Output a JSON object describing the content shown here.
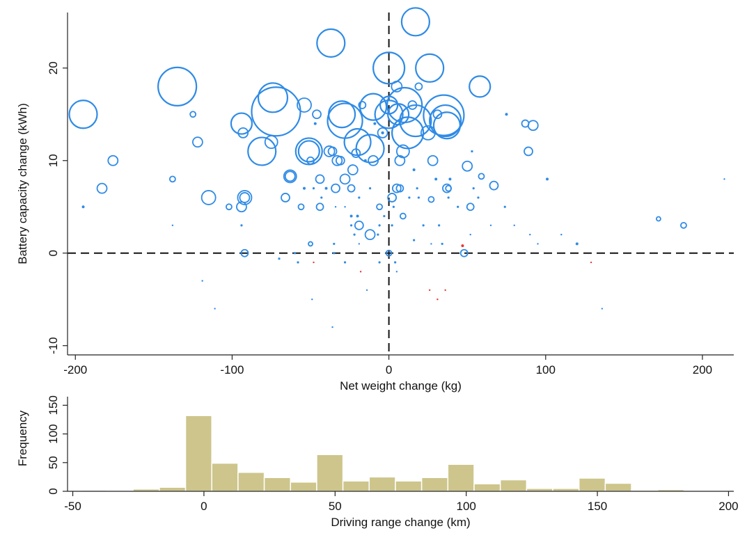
{
  "chart_data": [
    {
      "type": "scatter",
      "xlabel": "Net weight change (kg)",
      "ylabel": "Battery capacity change (kWh)",
      "xlim": [
        -205,
        220
      ],
      "ylim": [
        -11,
        26
      ],
      "xticks": [
        -200,
        -100,
        0,
        100,
        200
      ],
      "yticks": [
        -10,
        0,
        10,
        20
      ],
      "xtick_labels": [
        "-200",
        "-100",
        "0",
        "100",
        "200"
      ],
      "ytick_labels": [
        "-10",
        "0",
        "10",
        "20"
      ],
      "reference_lines": {
        "x": 0,
        "y": 0,
        "style": "dashed"
      },
      "size_encoding": "driving range change",
      "colors": {
        "positive": "#2f8be6",
        "negative": "#e8362e"
      },
      "points": [
        {
          "x": 17,
          "y": 25,
          "s": 40,
          "c": "b"
        },
        {
          "x": -37,
          "y": 22.7,
          "s": 40,
          "c": "b"
        },
        {
          "x": 0,
          "y": 20,
          "s": 45,
          "c": "b"
        },
        {
          "x": 26,
          "y": 20,
          "s": 40,
          "c": "b"
        },
        {
          "x": -135,
          "y": 18,
          "s": 55,
          "c": "b"
        },
        {
          "x": -74,
          "y": 16.8,
          "s": 42,
          "c": "b"
        },
        {
          "x": 5,
          "y": 18,
          "s": 15,
          "c": "b"
        },
        {
          "x": 19,
          "y": 18,
          "s": 10,
          "c": "b"
        },
        {
          "x": 58,
          "y": 18,
          "s": 30,
          "c": "b"
        },
        {
          "x": -195,
          "y": 15,
          "s": 40,
          "c": "b"
        },
        {
          "x": -72,
          "y": 15.3,
          "s": 70,
          "c": "b"
        },
        {
          "x": -54,
          "y": 16,
          "s": 20,
          "c": "b"
        },
        {
          "x": -46,
          "y": 15,
          "s": 12,
          "c": "b"
        },
        {
          "x": -125,
          "y": 15,
          "s": 8,
          "c": "b"
        },
        {
          "x": -30,
          "y": 15,
          "s": 38,
          "c": "b"
        },
        {
          "x": -28,
          "y": 14.3,
          "s": 50,
          "c": "b"
        },
        {
          "x": -17,
          "y": 16,
          "s": 10,
          "c": "b"
        },
        {
          "x": -10,
          "y": 15.8,
          "s": 38,
          "c": "b"
        },
        {
          "x": 0,
          "y": 16,
          "s": 25,
          "c": "b"
        },
        {
          "x": 0,
          "y": 15,
          "s": 40,
          "c": "b"
        },
        {
          "x": 6,
          "y": 15,
          "s": 30,
          "c": "b"
        },
        {
          "x": 10,
          "y": 16,
          "s": 50,
          "c": "b"
        },
        {
          "x": 15,
          "y": 16,
          "s": 12,
          "c": "b"
        },
        {
          "x": 17,
          "y": 14.3,
          "s": 45,
          "c": "b"
        },
        {
          "x": 31,
          "y": 15,
          "s": 12,
          "c": "b"
        },
        {
          "x": 35,
          "y": 14.9,
          "s": 58,
          "c": "b"
        },
        {
          "x": 36,
          "y": 14.3,
          "s": 45,
          "c": "b"
        },
        {
          "x": 37,
          "y": 13.8,
          "s": 38,
          "c": "b"
        },
        {
          "x": 75,
          "y": 15,
          "s": 5,
          "c": "b"
        },
        {
          "x": -94,
          "y": 14,
          "s": 30,
          "c": "b"
        },
        {
          "x": -93,
          "y": 13,
          "s": 14,
          "c": "b"
        },
        {
          "x": -47,
          "y": 14,
          "s": 5,
          "c": "b"
        },
        {
          "x": -9,
          "y": 14,
          "s": 5,
          "c": "b"
        },
        {
          "x": -4,
          "y": 13,
          "s": 5,
          "c": "b"
        },
        {
          "x": -4,
          "y": 13,
          "s": 5,
          "c": "b"
        },
        {
          "x": -4,
          "y": 13,
          "s": 14,
          "c": "b"
        },
        {
          "x": 12,
          "y": 13,
          "s": 45,
          "c": "b"
        },
        {
          "x": 25,
          "y": 13,
          "s": 20,
          "c": "b"
        },
        {
          "x": 87,
          "y": 14,
          "s": 10,
          "c": "b"
        },
        {
          "x": 92,
          "y": 13.8,
          "s": 14,
          "c": "b"
        },
        {
          "x": -122,
          "y": 12,
          "s": 14,
          "c": "b"
        },
        {
          "x": -75,
          "y": 12,
          "s": 18,
          "c": "b"
        },
        {
          "x": -81,
          "y": 11,
          "s": 40,
          "c": "b"
        },
        {
          "x": -51,
          "y": 11,
          "s": 38,
          "c": "b"
        },
        {
          "x": -51,
          "y": 11,
          "s": 30,
          "c": "b"
        },
        {
          "x": -38,
          "y": 11,
          "s": 15,
          "c": "b"
        },
        {
          "x": -36,
          "y": 11,
          "s": 12,
          "c": "b"
        },
        {
          "x": -20,
          "y": 12,
          "s": 38,
          "c": "b"
        },
        {
          "x": -12,
          "y": 11.3,
          "s": 40,
          "c": "b"
        },
        {
          "x": -21,
          "y": 10.8,
          "s": 12,
          "c": "b"
        },
        {
          "x": 9,
          "y": 11,
          "s": 18,
          "c": "b"
        },
        {
          "x": 89,
          "y": 11,
          "s": 12,
          "c": "b"
        },
        {
          "x": 53,
          "y": 11,
          "s": 4,
          "c": "b"
        },
        {
          "x": -176,
          "y": 10,
          "s": 14,
          "c": "b"
        },
        {
          "x": -33,
          "y": 10,
          "s": 14,
          "c": "b"
        },
        {
          "x": -31,
          "y": 10,
          "s": 12,
          "c": "b"
        },
        {
          "x": -15,
          "y": 10,
          "s": 5,
          "c": "b"
        },
        {
          "x": -10,
          "y": 10,
          "s": 14,
          "c": "b"
        },
        {
          "x": 7,
          "y": 10,
          "s": 14,
          "c": "b"
        },
        {
          "x": 28,
          "y": 10,
          "s": 14,
          "c": "b"
        },
        {
          "x": -23,
          "y": 9,
          "s": 14,
          "c": "b"
        },
        {
          "x": -50,
          "y": 10,
          "s": 10,
          "c": "b"
        },
        {
          "x": 50,
          "y": 9.4,
          "s": 14,
          "c": "b"
        },
        {
          "x": 16,
          "y": 9,
          "s": 5,
          "c": "b"
        },
        {
          "x": -138,
          "y": 8,
          "s": 8,
          "c": "b"
        },
        {
          "x": -63,
          "y": 8.3,
          "s": 18,
          "c": "b"
        },
        {
          "x": -63,
          "y": 8.3,
          "s": 14,
          "c": "b"
        },
        {
          "x": -28,
          "y": 8,
          "s": 14,
          "c": "b"
        },
        {
          "x": -44,
          "y": 8,
          "s": 12,
          "c": "b"
        },
        {
          "x": 30,
          "y": 8,
          "s": 5,
          "c": "b"
        },
        {
          "x": 39,
          "y": 8,
          "s": 5,
          "c": "b"
        },
        {
          "x": 59,
          "y": 8.3,
          "s": 8,
          "c": "b"
        },
        {
          "x": 101,
          "y": 8,
          "s": 5,
          "c": "b"
        },
        {
          "x": 214,
          "y": 8,
          "s": 3,
          "c": "b"
        },
        {
          "x": -183,
          "y": 7,
          "s": 14,
          "c": "b"
        },
        {
          "x": -54,
          "y": 7,
          "s": 5,
          "c": "b"
        },
        {
          "x": -48,
          "y": 7,
          "s": 4,
          "c": "b"
        },
        {
          "x": -40,
          "y": 7,
          "s": 5,
          "c": "b"
        },
        {
          "x": -34,
          "y": 7,
          "s": 12,
          "c": "b"
        },
        {
          "x": -24,
          "y": 7,
          "s": 10,
          "c": "b"
        },
        {
          "x": -12,
          "y": 7,
          "s": 4,
          "c": "b"
        },
        {
          "x": 5,
          "y": 7,
          "s": 12,
          "c": "b"
        },
        {
          "x": 7,
          "y": 7,
          "s": 10,
          "c": "b"
        },
        {
          "x": 18,
          "y": 7,
          "s": 4,
          "c": "b"
        },
        {
          "x": 37,
          "y": 7,
          "s": 12,
          "c": "b"
        },
        {
          "x": 38,
          "y": 7,
          "s": 8,
          "c": "b"
        },
        {
          "x": 54,
          "y": 7,
          "s": 4,
          "c": "b"
        },
        {
          "x": 67,
          "y": 7.3,
          "s": 12,
          "c": "b"
        },
        {
          "x": -115,
          "y": 6,
          "s": 20,
          "c": "b"
        },
        {
          "x": -92,
          "y": 6,
          "s": 20,
          "c": "b"
        },
        {
          "x": -92,
          "y": 6,
          "s": 14,
          "c": "b"
        },
        {
          "x": -66,
          "y": 6,
          "s": 12,
          "c": "b"
        },
        {
          "x": -43,
          "y": 6,
          "s": 4,
          "c": "b"
        },
        {
          "x": -19,
          "y": 6,
          "s": 4,
          "c": "b"
        },
        {
          "x": 2,
          "y": 6,
          "s": 12,
          "c": "b"
        },
        {
          "x": 13,
          "y": 6,
          "s": 4,
          "c": "b"
        },
        {
          "x": 19,
          "y": 6,
          "s": 4,
          "c": "b"
        },
        {
          "x": 27,
          "y": 5.8,
          "s": 8,
          "c": "b"
        },
        {
          "x": 38,
          "y": 6,
          "s": 4,
          "c": "b"
        },
        {
          "x": 57,
          "y": 6,
          "s": 4,
          "c": "b"
        },
        {
          "x": -195,
          "y": 5,
          "s": 5,
          "c": "b"
        },
        {
          "x": -102,
          "y": 5,
          "s": 8,
          "c": "b"
        },
        {
          "x": -94,
          "y": 5,
          "s": 14,
          "c": "b"
        },
        {
          "x": -56,
          "y": 5,
          "s": 8,
          "c": "b"
        },
        {
          "x": -44,
          "y": 5,
          "s": 10,
          "c": "b"
        },
        {
          "x": -34,
          "y": 5,
          "s": 3,
          "c": "b"
        },
        {
          "x": -28,
          "y": 5,
          "s": 3,
          "c": "b"
        },
        {
          "x": -6,
          "y": 5,
          "s": 8,
          "c": "b"
        },
        {
          "x": 3,
          "y": 5,
          "s": 4,
          "c": "b"
        },
        {
          "x": 44,
          "y": 5,
          "s": 4,
          "c": "b"
        },
        {
          "x": 52,
          "y": 5,
          "s": 10,
          "c": "b"
        },
        {
          "x": 74,
          "y": 5,
          "s": 4,
          "c": "b"
        },
        {
          "x": -24,
          "y": 4,
          "s": 5,
          "c": "b"
        },
        {
          "x": -20,
          "y": 4,
          "s": 5,
          "c": "b"
        },
        {
          "x": -3,
          "y": 4,
          "s": 4,
          "c": "b"
        },
        {
          "x": 9,
          "y": 4,
          "s": 8,
          "c": "b"
        },
        {
          "x": -138,
          "y": 3,
          "s": 3,
          "c": "b"
        },
        {
          "x": -94,
          "y": 3,
          "s": 4,
          "c": "b"
        },
        {
          "x": -24,
          "y": 3,
          "s": 4,
          "c": "b"
        },
        {
          "x": -19,
          "y": 3,
          "s": 12,
          "c": "b"
        },
        {
          "x": -6,
          "y": 3,
          "s": 4,
          "c": "b"
        },
        {
          "x": 2,
          "y": 3,
          "s": 4,
          "c": "b"
        },
        {
          "x": 22,
          "y": 3,
          "s": 4,
          "c": "b"
        },
        {
          "x": 32,
          "y": 3,
          "s": 4,
          "c": "b"
        },
        {
          "x": 65,
          "y": 3,
          "s": 3,
          "c": "b"
        },
        {
          "x": 80,
          "y": 3,
          "s": 3,
          "c": "b"
        },
        {
          "x": 172,
          "y": 3.7,
          "s": 6,
          "c": "b"
        },
        {
          "x": 188,
          "y": 3,
          "s": 8,
          "c": "b"
        },
        {
          "x": -12,
          "y": 2,
          "s": 14,
          "c": "b"
        },
        {
          "x": -22,
          "y": 2,
          "s": 4,
          "c": "b"
        },
        {
          "x": -7,
          "y": 2,
          "s": 4,
          "c": "b"
        },
        {
          "x": 52,
          "y": 2,
          "s": 3,
          "c": "b"
        },
        {
          "x": 90,
          "y": 2,
          "s": 3,
          "c": "b"
        },
        {
          "x": 110,
          "y": 2,
          "s": 3,
          "c": "b"
        },
        {
          "x": -50,
          "y": 1,
          "s": 6,
          "c": "b"
        },
        {
          "x": -35,
          "y": 1,
          "s": 4,
          "c": "b"
        },
        {
          "x": -19,
          "y": 1,
          "s": 3,
          "c": "b"
        },
        {
          "x": 16,
          "y": 1.4,
          "s": 4,
          "c": "b"
        },
        {
          "x": 27,
          "y": 1,
          "s": 3,
          "c": "b"
        },
        {
          "x": 34,
          "y": 1,
          "s": 4,
          "c": "b"
        },
        {
          "x": 95,
          "y": 1,
          "s": 3,
          "c": "b"
        },
        {
          "x": 120,
          "y": 1,
          "s": 5,
          "c": "b"
        },
        {
          "x": 47,
          "y": 0.8,
          "s": 5,
          "c": "r"
        },
        {
          "x": -92,
          "y": 0,
          "s": 10,
          "c": "b"
        },
        {
          "x": -60,
          "y": 0,
          "s": 4,
          "c": "b"
        },
        {
          "x": -35,
          "y": 0,
          "s": 4,
          "c": "b"
        },
        {
          "x": 0,
          "y": 0,
          "s": 8,
          "c": "b"
        },
        {
          "x": 48,
          "y": 0,
          "s": 10,
          "c": "b"
        },
        {
          "x": -70,
          "y": -0.6,
          "s": 4,
          "c": "b"
        },
        {
          "x": -58,
          "y": -1,
          "s": 4,
          "c": "b"
        },
        {
          "x": -48,
          "y": -1,
          "s": 3,
          "c": "r"
        },
        {
          "x": -28,
          "y": -1,
          "s": 4,
          "c": "b"
        },
        {
          "x": -6,
          "y": -1,
          "s": 4,
          "c": "b"
        },
        {
          "x": 4,
          "y": -1,
          "s": 4,
          "c": "b"
        },
        {
          "x": 129,
          "y": -1,
          "s": 3,
          "c": "r"
        },
        {
          "x": -18,
          "y": -2,
          "s": 3,
          "c": "r"
        },
        {
          "x": 5,
          "y": -2,
          "s": 3,
          "c": "b"
        },
        {
          "x": -119,
          "y": -3,
          "s": 3,
          "c": "b"
        },
        {
          "x": -14,
          "y": -4,
          "s": 3,
          "c": "b"
        },
        {
          "x": 26,
          "y": -4,
          "s": 3,
          "c": "r"
        },
        {
          "x": 36,
          "y": -4,
          "s": 3,
          "c": "r"
        },
        {
          "x": -49,
          "y": -5,
          "s": 3,
          "c": "b"
        },
        {
          "x": 31,
          "y": -5,
          "s": 3,
          "c": "r"
        },
        {
          "x": -111,
          "y": -6,
          "s": 3,
          "c": "b"
        },
        {
          "x": 136,
          "y": -6,
          "s": 3,
          "c": "b"
        },
        {
          "x": -36,
          "y": -8,
          "s": 3,
          "c": "b"
        }
      ]
    },
    {
      "type": "bar",
      "xlabel": "Driving range change (km)",
      "ylabel": "Frequency",
      "xlim": [
        -52,
        202
      ],
      "ylim": [
        0,
        165
      ],
      "xticks": [
        -50,
        0,
        50,
        100,
        150,
        200
      ],
      "yticks": [
        0,
        50,
        100,
        150
      ],
      "xtick_labels": [
        "-50",
        "0",
        "50",
        "100",
        "150",
        "200"
      ],
      "ytick_labels": [
        "0",
        "50",
        "100",
        "150"
      ],
      "bin_width": 10,
      "bins": [
        {
          "start": -47,
          "count": 2
        },
        {
          "start": -27,
          "count": 4
        },
        {
          "start": -17,
          "count": 7
        },
        {
          "start": -7,
          "count": 132
        },
        {
          "start": 3,
          "count": 49
        },
        {
          "start": 13,
          "count": 33
        },
        {
          "start": 23,
          "count": 24
        },
        {
          "start": 33,
          "count": 16
        },
        {
          "start": 43,
          "count": 64
        },
        {
          "start": 53,
          "count": 18
        },
        {
          "start": 63,
          "count": 25
        },
        {
          "start": 73,
          "count": 18
        },
        {
          "start": 83,
          "count": 24
        },
        {
          "start": 93,
          "count": 47
        },
        {
          "start": 103,
          "count": 13
        },
        {
          "start": 113,
          "count": 20
        },
        {
          "start": 123,
          "count": 5
        },
        {
          "start": 133,
          "count": 5
        },
        {
          "start": 143,
          "count": 23
        },
        {
          "start": 153,
          "count": 14
        },
        {
          "start": 163,
          "count": 2
        },
        {
          "start": 173,
          "count": 3
        }
      ],
      "colors": {
        "fill": "#cdc58b",
        "stroke": "#ffffff"
      }
    }
  ]
}
